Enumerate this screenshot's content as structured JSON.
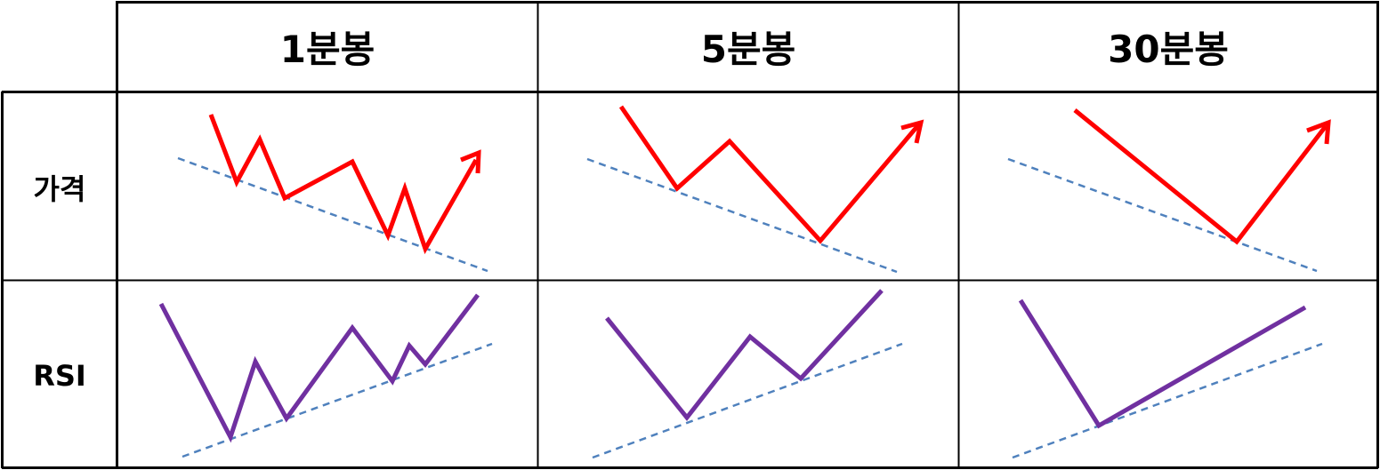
{
  "columns": [
    "1분봉",
    "5분봉",
    "30분봉"
  ],
  "rows": [
    "가격",
    "RSI"
  ],
  "colors": {
    "price_line": "#ff0000",
    "rsi_line": "#7030a0",
    "trend_line": "#4f81bd",
    "grid": "#000000"
  },
  "diagram_data": {
    "cells": [
      {
        "column": "1분봉",
        "row": "가격",
        "pattern": "zigzag decline with higher-low-free lows touching a falling trendline, then sharp rally",
        "line": "price",
        "arrow": true
      },
      {
        "column": "5분봉",
        "row": "가격",
        "pattern": "two lows on a falling trendline, then sharp rally",
        "line": "price",
        "arrow": true
      },
      {
        "column": "30분봉",
        "row": "가격",
        "pattern": "single decline to falling trendline, then sharp rally",
        "line": "price",
        "arrow": true
      },
      {
        "column": "1분봉",
        "row": "RSI",
        "pattern": "rising lows on a rising trendline",
        "line": "rsi",
        "arrow": false
      },
      {
        "column": "5분봉",
        "row": "RSI",
        "pattern": "rising lows on a rising trendline",
        "line": "rsi",
        "arrow": false
      },
      {
        "column": "30분봉",
        "row": "RSI",
        "pattern": "low then rising line above rising trendline",
        "line": "rsi",
        "arrow": false
      }
    ]
  }
}
